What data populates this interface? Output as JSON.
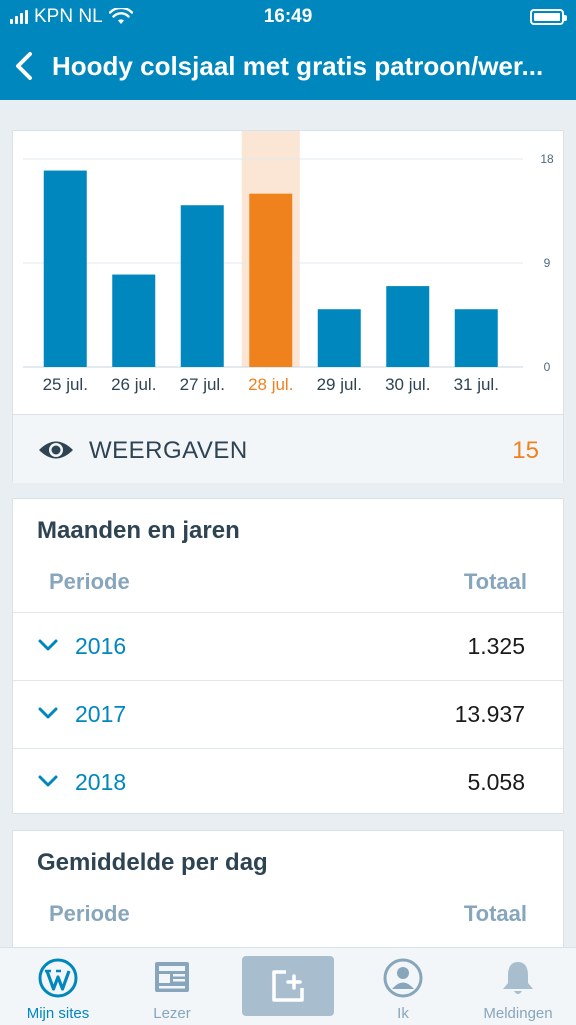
{
  "status_bar": {
    "carrier": "KPN NL",
    "time": "16:49"
  },
  "nav": {
    "title": "Hoody colsjaal met gratis patroon/wer..."
  },
  "chart_data": {
    "type": "bar",
    "categories": [
      "25 jul.",
      "26 jul.",
      "27 jul.",
      "28 jul.",
      "29 jul.",
      "30 jul.",
      "31 jul."
    ],
    "values": [
      17,
      8,
      14,
      15,
      5,
      7,
      5
    ],
    "highlight_index": 3,
    "y_ticks": [
      "18",
      "9",
      "0"
    ],
    "ylim": [
      0,
      18
    ],
    "bar_color": "#0087be",
    "highlight_color": "#f0821e",
    "highlight_band_color": "#fbe6d6",
    "grid": true
  },
  "views": {
    "label": "WEERGAVEN",
    "value": "15"
  },
  "months_years": {
    "heading": "Maanden en jaren",
    "col_period": "Periode",
    "col_total": "Totaal",
    "rows": [
      {
        "year": "2016",
        "total": "1.325"
      },
      {
        "year": "2017",
        "total": "13.937"
      },
      {
        "year": "2018",
        "total": "5.058"
      }
    ]
  },
  "average": {
    "heading": "Gemiddelde per dag",
    "col_period": "Periode",
    "col_total": "Totaal"
  },
  "tabs": [
    {
      "label": "Mijn sites",
      "icon": "wordpress-icon",
      "active": true
    },
    {
      "label": "Lezer",
      "icon": "reader-icon",
      "active": false
    },
    {
      "label": "",
      "icon": "new-post-icon",
      "active": false
    },
    {
      "label": "Ik",
      "icon": "profile-icon",
      "active": false
    },
    {
      "label": "Meldingen",
      "icon": "bell-icon",
      "active": false
    }
  ]
}
